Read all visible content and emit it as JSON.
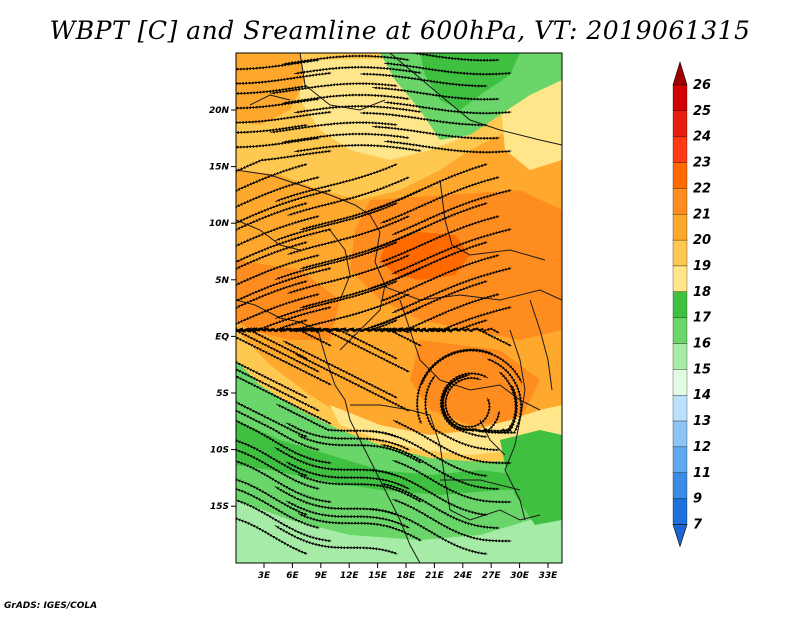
{
  "title": "WBPT [C] and Sreamline at 600hPa, VT: 2019061315",
  "credit": "GrADS: IGES/COLA",
  "lat_ticks": [
    "20N",
    "15N",
    "10N",
    "5N",
    "EQ",
    "5S",
    "10S",
    "15S"
  ],
  "lon_ticks": [
    "3E",
    "6E",
    "9E",
    "12E",
    "15E",
    "18E",
    "21E",
    "24E",
    "27E",
    "30E",
    "33E"
  ],
  "colorbar": {
    "labels": [
      "26",
      "25",
      "24",
      "23",
      "22",
      "21",
      "20",
      "19",
      "18",
      "17",
      "16",
      "15",
      "14",
      "13",
      "12",
      "11",
      "9",
      "7"
    ],
    "colors": [
      "#d20000",
      "#e61e10",
      "#ff3a14",
      "#ff6a00",
      "#ff8c1e",
      "#ffa82e",
      "#ffc850",
      "#ffe68a",
      "#40c040",
      "#6ad66a",
      "#a6eca6",
      "#e2fbe2",
      "#bce0fc",
      "#8ec4f6",
      "#5ea8f0",
      "#3a8ce6",
      "#2070dc"
    ],
    "top_arrow_color": "#a00000",
    "bottom_arrow_color": "#1e64d2"
  },
  "palette": {
    "green_dark": "#40c040",
    "green_mid": "#6ad66a",
    "green_light": "#a6eca6",
    "yellow": "#ffe68a",
    "orange_light": "#ffc850",
    "orange": "#ffa82e",
    "orange_dark": "#ff8c1e",
    "red_orange": "#ff6a00"
  }
}
